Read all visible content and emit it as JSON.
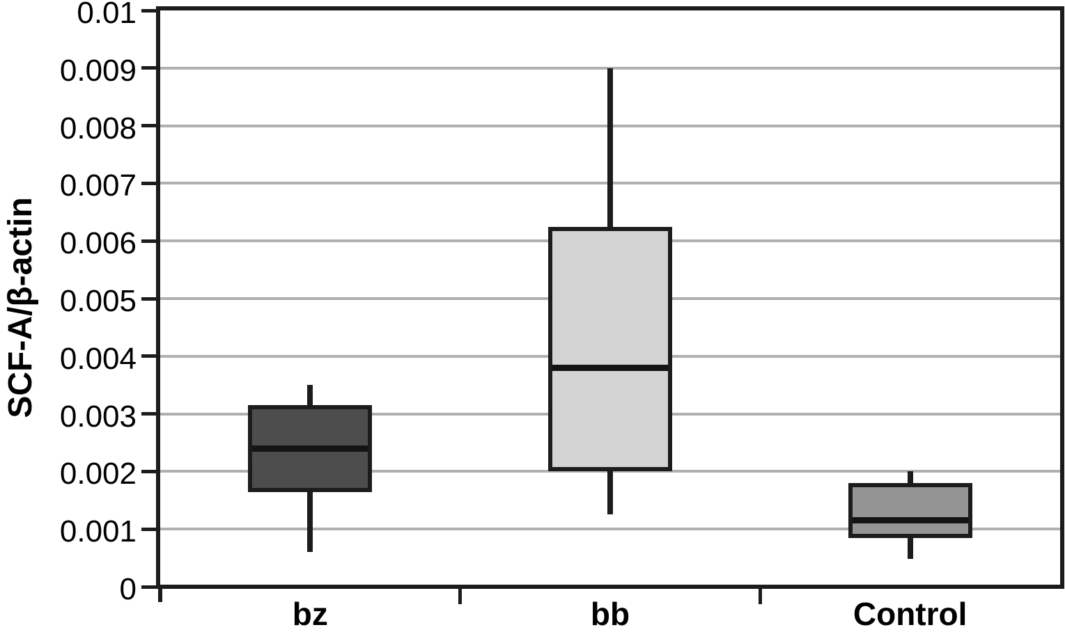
{
  "chart_data": {
    "type": "boxplot",
    "title": "",
    "xlabel": "",
    "ylabel": "SCF-A/β-actin",
    "ylim": [
      0,
      0.01
    ],
    "ytick_interval": 0.001,
    "grid": "horizontal",
    "legend": "none",
    "yticks": [
      {
        "v": 0,
        "label": "0"
      },
      {
        "v": 0.001,
        "label": "0.001"
      },
      {
        "v": 0.002,
        "label": "0.002"
      },
      {
        "v": 0.003,
        "label": "0.003"
      },
      {
        "v": 0.004,
        "label": "0.004"
      },
      {
        "v": 0.005,
        "label": "0.005"
      },
      {
        "v": 0.006,
        "label": "0.006"
      },
      {
        "v": 0.007,
        "label": "0.007"
      },
      {
        "v": 0.008,
        "label": "0.008"
      },
      {
        "v": 0.009,
        "label": "0.009"
      },
      {
        "v": 0.01,
        "label": "0.01"
      }
    ],
    "categories": [
      "bz",
      "bb",
      "Control"
    ],
    "series": [
      {
        "name": "bz",
        "min": 0.0006,
        "q1": 0.00164,
        "median": 0.0024,
        "q3": 0.00315,
        "max": 0.0035,
        "fill": "#4d4d4d"
      },
      {
        "name": "bb",
        "min": 0.00125,
        "q1": 0.002,
        "median": 0.0038,
        "q3": 0.00625,
        "max": 0.009,
        "fill": "#d4d4d4"
      },
      {
        "name": "Control",
        "min": 0.00048,
        "q1": 0.00085,
        "median": 0.00115,
        "q3": 0.0018,
        "max": 0.002,
        "fill": "#949494"
      }
    ],
    "colors": {
      "background": "#ffffff",
      "axis": "#1c1c1c",
      "box_border": "#1c1c1c",
      "whisker": "#1c1c1c",
      "median": "#141414",
      "gridline": "#b0b0b0",
      "text": "#000000"
    }
  }
}
